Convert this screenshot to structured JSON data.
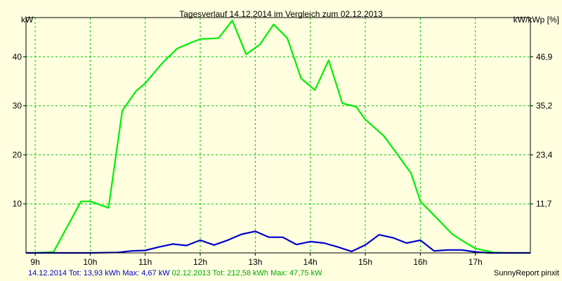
{
  "chart_data": {
    "type": "line",
    "title": "Tagesverlauf 14.12.2014 im Vergleich zum 02.12.2013",
    "ylabel_left": "kW",
    "ylabel_right": "kW/kWp [%]",
    "x_ticks": [
      "9h",
      "10h",
      "11h",
      "12h",
      "13h",
      "14h",
      "15h",
      "16h",
      "17h"
    ],
    "x_tick_values": [
      9,
      10,
      11,
      12,
      13,
      14,
      15,
      16,
      17
    ],
    "xlim": [
      8.833,
      18.0
    ],
    "ylim": [
      0,
      48
    ],
    "y_ticks_left": [
      "10",
      "20",
      "30",
      "40"
    ],
    "y_tick_values": [
      10,
      20,
      30,
      40
    ],
    "y_ticks_right": [
      "11,7",
      "23,4",
      "35,2",
      "46,9"
    ],
    "grid": true,
    "series": [
      {
        "name": "14.12.2014",
        "color": "#0000cc",
        "x": [
          8.833,
          9.5,
          10.0,
          10.5,
          10.75,
          11.0,
          11.25,
          11.5,
          11.75,
          12.0,
          12.25,
          12.5,
          12.75,
          13.0,
          13.25,
          13.5,
          13.75,
          14.0,
          14.25,
          14.5,
          14.75,
          15.0,
          15.25,
          15.5,
          15.75,
          16.0,
          16.25,
          16.5,
          16.75,
          17.0,
          17.25,
          17.5,
          18.0
        ],
        "values": [
          0,
          0,
          0,
          0.1,
          0.4,
          0.5,
          1.2,
          1.8,
          1.5,
          2.6,
          1.6,
          2.6,
          3.8,
          4.4,
          3.2,
          3.2,
          1.7,
          2.3,
          2.0,
          1.2,
          0.3,
          1.6,
          3.7,
          3.1,
          2.0,
          2.6,
          0.4,
          0.6,
          0.6,
          0.2,
          0,
          0,
          0
        ]
      },
      {
        "name": "02.12.2013",
        "color": "#00ee00",
        "x": [
          8.833,
          9.0,
          9.333,
          9.833,
          10.0,
          10.333,
          10.583,
          10.833,
          11.0,
          11.333,
          11.583,
          11.833,
          12.0,
          12.333,
          12.583,
          12.833,
          13.083,
          13.333,
          13.583,
          13.833,
          14.083,
          14.333,
          14.583,
          14.833,
          15.0,
          15.333,
          15.583,
          15.833,
          16.0,
          16.333,
          16.583,
          16.833,
          17.0,
          17.333,
          17.583,
          18.0
        ],
        "values": [
          0,
          0,
          0.2,
          10.5,
          10.5,
          9.2,
          29.0,
          33.0,
          34.6,
          39.0,
          41.7,
          42.9,
          43.6,
          43.8,
          47.4,
          40.5,
          42.5,
          46.6,
          43.8,
          35.6,
          33.2,
          39.3,
          30.5,
          29.8,
          27.2,
          23.9,
          20.1,
          16.2,
          10.5,
          6.7,
          3.8,
          2.0,
          0.9,
          0.1,
          0,
          0
        ]
      }
    ]
  },
  "footer": {
    "left_blue": "14.12.2014 Tot: 13,93 kWh Max: 4,67 kW",
    "left_green": "02.12.2013 Tot: 212,58 kWh Max: 47,75 kW",
    "right": "SunnyReport pinxit"
  },
  "colors": {
    "background": "#ffffe0",
    "grid": "#00cc00",
    "series_blue": "#0000cc",
    "series_green": "#00ee00"
  }
}
